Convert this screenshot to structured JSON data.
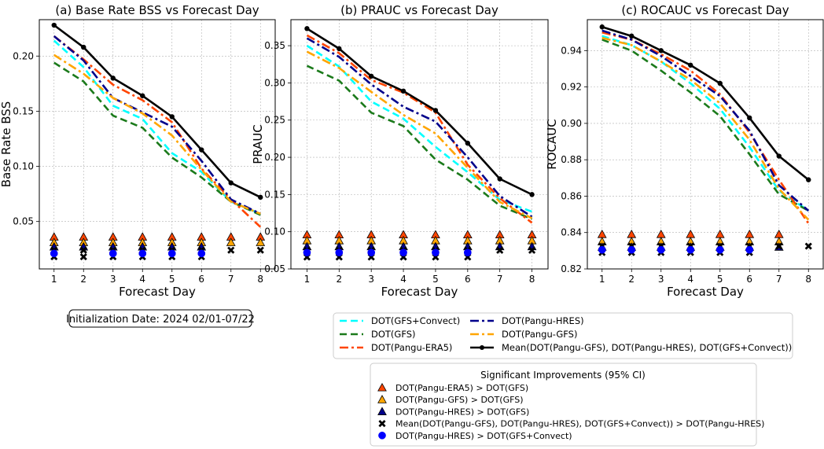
{
  "colors": {
    "gfs_convect": "#00FFFF",
    "gfs": "#1B7A1B",
    "pangu_era5": "#FF4500",
    "pangu_hres": "#00008B",
    "pangu_gfs": "#FFA500",
    "mean": "#000000",
    "sig_hres_vs_convect": "#0000FF"
  },
  "chart_data": [
    {
      "type": "line",
      "title": "(a) Base Rate BSS vs Forecast Day",
      "xlabel": "Forecast Day",
      "ylabel": "Base Rate BSS",
      "x": [
        1,
        2,
        3,
        4,
        5,
        6,
        7,
        8
      ],
      "ylim": [
        0.007,
        0.233
      ],
      "yticks": [
        "0.05",
        "0.10",
        "0.15",
        "0.20"
      ],
      "ytick_values": [
        0.05,
        0.1,
        0.15,
        0.2
      ],
      "grid": true,
      "series": [
        {
          "name": "DOT(GFS+Convect)",
          "values": [
            0.214,
            0.19,
            0.155,
            0.143,
            0.112,
            0.095,
            0.068,
            0.057
          ]
        },
        {
          "name": "DOT(GFS)",
          "values": [
            0.194,
            0.177,
            0.146,
            0.135,
            0.108,
            0.09,
            0.068,
            0.056
          ]
        },
        {
          "name": "DOT(Pangu-ERA5)",
          "values": [
            0.218,
            0.197,
            0.174,
            0.16,
            0.14,
            0.098,
            0.07,
            0.045
          ]
        },
        {
          "name": "DOT(Pangu-HRES)",
          "values": [
            0.218,
            0.196,
            0.162,
            0.149,
            0.136,
            0.105,
            0.07,
            0.057
          ]
        },
        {
          "name": "DOT(Pangu-GFS)",
          "values": [
            0.201,
            0.184,
            0.162,
            0.148,
            0.128,
            0.097,
            0.068,
            0.057
          ]
        },
        {
          "name": "Mean(DOT(Pangu-GFS), DOT(Pangu-HRES), DOT(GFS+Convect))",
          "values": [
            0.228,
            0.208,
            0.18,
            0.164,
            0.145,
            0.115,
            0.085,
            0.072
          ]
        }
      ],
      "significance": {
        "era5_vs_gfs": [
          1,
          2,
          3,
          4,
          5,
          6,
          7,
          8
        ],
        "pgfs_vs_gfs": [
          1,
          2,
          3,
          4,
          5,
          6,
          7,
          8
        ],
        "phres_vs_gfs": [
          1,
          2,
          3,
          4,
          5,
          6
        ],
        "mean_vs_phres": [
          1,
          2,
          3,
          4,
          5,
          6,
          7,
          8
        ],
        "phres_vs_convect": [
          1,
          3,
          4,
          5,
          6
        ],
        "levels": {
          "era5": 0.036,
          "pgfs": 0.031,
          "phres": 0.027,
          "mean_a": 0.024,
          "mean_b": 0.018,
          "blue": 0.021
        }
      },
      "init_date": "Initialization Date: 2024 02/01-07/22"
    },
    {
      "type": "line",
      "title": "(b) PRAUC vs Forecast Day",
      "xlabel": "Forecast Day",
      "ylabel": "PRAUC",
      "x": [
        1,
        2,
        3,
        4,
        5,
        6,
        7,
        8
      ],
      "ylim": [
        0.05,
        0.385
      ],
      "yticks": [
        "0.05",
        "0.10",
        "0.15",
        "0.20",
        "0.25",
        "0.30",
        "0.35"
      ],
      "ytick_values": [
        0.05,
        0.1,
        0.15,
        0.2,
        0.25,
        0.3,
        0.35
      ],
      "grid": true,
      "series": [
        {
          "name": "DOT(GFS+Convect)",
          "values": [
            0.35,
            0.322,
            0.275,
            0.252,
            0.214,
            0.18,
            0.143,
            0.127
          ]
        },
        {
          "name": "DOT(GFS)",
          "values": [
            0.323,
            0.303,
            0.26,
            0.242,
            0.197,
            0.17,
            0.135,
            0.117
          ]
        },
        {
          "name": "DOT(Pangu-ERA5)",
          "values": [
            0.364,
            0.34,
            0.304,
            0.287,
            0.26,
            0.19,
            0.145,
            0.112
          ]
        },
        {
          "name": "DOT(Pangu-HRES)",
          "values": [
            0.36,
            0.335,
            0.298,
            0.268,
            0.248,
            0.2,
            0.148,
            0.12
          ]
        },
        {
          "name": "DOT(Pangu-GFS)",
          "values": [
            0.342,
            0.32,
            0.288,
            0.257,
            0.232,
            0.186,
            0.14,
            0.118
          ]
        },
        {
          "name": "Mean(DOT(Pangu-GFS), DOT(Pangu-HRES), DOT(GFS+Convect))",
          "values": [
            0.373,
            0.346,
            0.309,
            0.289,
            0.263,
            0.219,
            0.171,
            0.15
          ]
        }
      ],
      "significance": {
        "era5_vs_gfs": [
          1,
          2,
          3,
          4,
          5,
          6,
          7,
          8
        ],
        "pgfs_vs_gfs": [
          1,
          2,
          3,
          4,
          5,
          6,
          7,
          8
        ],
        "phres_vs_gfs": [
          1,
          2,
          3,
          4,
          5,
          6,
          7,
          8
        ],
        "mean_vs_phres": [
          1,
          2,
          3,
          4,
          5,
          6,
          7,
          8
        ],
        "phres_vs_convect": [
          1,
          2,
          3,
          4,
          5,
          6
        ],
        "levels": {
          "era5": 0.096,
          "pgfs": 0.088,
          "phres": 0.08,
          "mean_a": 0.075,
          "mean_b": 0.066,
          "blue": 0.072
        }
      }
    },
    {
      "type": "line",
      "title": "(c) ROCAUC vs Forecast Day",
      "xlabel": "Forecast Day",
      "ylabel": "ROCAUC",
      "x": [
        1,
        2,
        3,
        4,
        5,
        6,
        7,
        8
      ],
      "ylim": [
        0.82,
        0.957
      ],
      "yticks": [
        "0.82",
        "0.84",
        "0.86",
        "0.88",
        "0.90",
        "0.92",
        "0.94"
      ],
      "ytick_values": [
        0.82,
        0.84,
        0.86,
        0.88,
        0.9,
        0.92,
        0.94
      ],
      "grid": true,
      "series": [
        {
          "name": "DOT(GFS+Convect)",
          "values": [
            0.948,
            0.943,
            0.934,
            0.922,
            0.908,
            0.887,
            0.863,
            0.852
          ]
        },
        {
          "name": "DOT(GFS)",
          "values": [
            0.946,
            0.94,
            0.929,
            0.917,
            0.904,
            0.883,
            0.861,
            0.852
          ]
        },
        {
          "name": "DOT(Pangu-ERA5)",
          "values": [
            0.95,
            0.946,
            0.938,
            0.929,
            0.916,
            0.895,
            0.869,
            0.845
          ]
        },
        {
          "name": "DOT(Pangu-HRES)",
          "values": [
            0.951,
            0.946,
            0.937,
            0.926,
            0.915,
            0.896,
            0.866,
            0.852
          ]
        },
        {
          "name": "DOT(Pangu-GFS)",
          "values": [
            0.947,
            0.943,
            0.934,
            0.924,
            0.911,
            0.891,
            0.864,
            0.847
          ]
        },
        {
          "name": "Mean(DOT(Pangu-GFS), DOT(Pangu-HRES), DOT(GFS+Convect))",
          "values": [
            0.953,
            0.948,
            0.94,
            0.932,
            0.922,
            0.903,
            0.882,
            0.869
          ]
        }
      ],
      "significance": {
        "era5_vs_gfs": [
          1,
          2,
          3,
          4,
          5,
          6,
          7
        ],
        "pgfs_vs_gfs": [
          1,
          2,
          3,
          4,
          5,
          6,
          7
        ],
        "phres_vs_gfs": [
          1,
          2,
          3,
          4,
          5,
          6,
          7
        ],
        "mean_vs_phres": [
          1,
          2,
          3,
          4,
          5,
          6,
          7,
          8
        ],
        "phres_vs_convect": [
          1,
          2,
          3,
          4,
          5,
          6
        ],
        "levels": {
          "era5": 0.839,
          "pgfs": 0.835,
          "phres": 0.832,
          "mean_a": 0.8325,
          "mean_b": 0.829,
          "blue": 0.8305
        }
      }
    }
  ],
  "legend": {
    "entries": [
      "DOT(GFS+Convect)",
      "DOT(GFS)",
      "DOT(Pangu-ERA5)",
      "DOT(Pangu-HRES)",
      "DOT(Pangu-GFS)",
      "Mean(DOT(Pangu-GFS), DOT(Pangu-HRES), DOT(GFS+Convect))"
    ]
  },
  "sig_legend": {
    "title": "Significant Improvements (95% CI)",
    "entries": [
      "DOT(Pangu-ERA5) > DOT(GFS)",
      "DOT(Pangu-GFS) > DOT(GFS)",
      "DOT(Pangu-HRES) > DOT(GFS)",
      "Mean(DOT(Pangu-GFS), DOT(Pangu-HRES), DOT(GFS+Convect)) > DOT(Pangu-HRES)",
      "DOT(Pangu-HRES) > DOT(GFS+Convect)"
    ]
  }
}
